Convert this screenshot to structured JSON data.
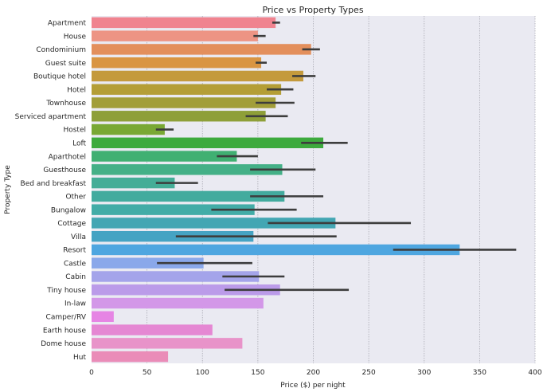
{
  "chart_data": {
    "type": "bar",
    "orientation": "horizontal",
    "title": "Price vs Property Types",
    "xlabel": "Price ($) per night",
    "ylabel": "Property Type",
    "xlim": [
      0,
      400
    ],
    "xticks": [
      0,
      50,
      100,
      150,
      200,
      250,
      300,
      350,
      400
    ],
    "grid": "vertical",
    "legend": "none",
    "categories": [
      "Apartment",
      "House",
      "Condominium",
      "Guest suite",
      "Boutique hotel",
      "Hotel",
      "Townhouse",
      "Serviced apartment",
      "Hostel",
      "Loft",
      "Aparthotel",
      "Guesthouse",
      "Bed and breakfast",
      "Other",
      "Bungalow",
      "Cottage",
      "Villa",
      "Resort",
      "Castle",
      "Cabin",
      "Tiny house",
      "In-law",
      "Camper/RV",
      "Earth house",
      "Dome house",
      "Hut"
    ],
    "values": [
      166,
      150,
      198,
      153,
      191,
      171,
      166,
      157,
      66,
      209,
      131,
      172,
      75,
      174,
      147,
      220,
      146,
      332,
      101,
      151,
      170,
      155,
      20,
      109,
      136,
      69
    ],
    "error_low": [
      163,
      146,
      190,
      148,
      181,
      158,
      148,
      139,
      58,
      189,
      113,
      143,
      58,
      143,
      108,
      159,
      76,
      272,
      59,
      118,
      120,
      null,
      null,
      null,
      null,
      null
    ],
    "error_high": [
      170,
      157,
      206,
      158,
      202,
      182,
      183,
      177,
      74,
      231,
      150,
      202,
      96,
      209,
      185,
      288,
      221,
      383,
      145,
      174,
      232,
      null,
      null,
      null,
      null,
      null
    ],
    "colors": [
      "#f0838f",
      "#ed9484",
      "#e38f5c",
      "#d99543",
      "#c49a3c",
      "#b49e36",
      "#a29e39",
      "#8e9f38",
      "#79a834",
      "#3daa3d",
      "#40b072",
      "#44b087",
      "#44ad97",
      "#42ab9e",
      "#42aca7",
      "#43a6b3",
      "#45a3c3",
      "#4ea6e0",
      "#8aa8ea",
      "#a4a4ea",
      "#bb9be9",
      "#d397e8",
      "#e685e4",
      "#e587d3",
      "#e893c9",
      "#ea8cb8"
    ]
  }
}
